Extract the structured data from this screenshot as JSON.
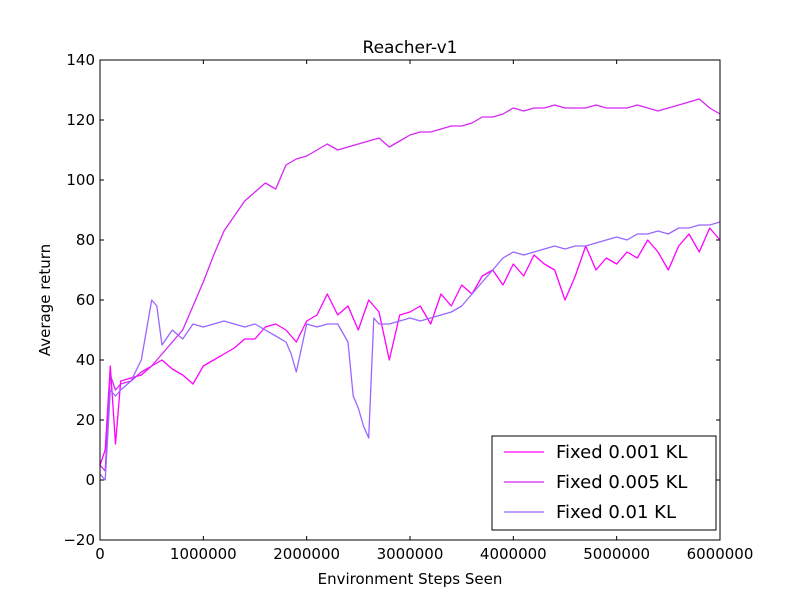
{
  "chart_data": {
    "type": "line",
    "title": "Reacher-v1",
    "xlabel": "Environment Steps Seen",
    "ylabel": "Average return",
    "xlim": [
      0,
      6000000
    ],
    "ylim": [
      -20,
      140
    ],
    "xticks": [
      0,
      1000000,
      2000000,
      3000000,
      4000000,
      5000000,
      6000000
    ],
    "xtick_labels": [
      "0",
      "1000000",
      "2000000",
      "3000000",
      "4000000",
      "5000000",
      "6000000"
    ],
    "yticks": [
      -20,
      0,
      20,
      40,
      60,
      80,
      100,
      120,
      140
    ],
    "ytick_labels": [
      "−20",
      "0",
      "20",
      "40",
      "60",
      "80",
      "100",
      "120",
      "140"
    ],
    "grid": false,
    "legend_position": "bottom-right",
    "series": [
      {
        "name": "Fixed 0.001 KL",
        "color": "#ff00ff",
        "x": [
          0,
          50000,
          100000,
          150000,
          200000,
          300000,
          400000,
          500000,
          600000,
          700000,
          800000,
          900000,
          1000000,
          1100000,
          1200000,
          1300000,
          1400000,
          1500000,
          1600000,
          1700000,
          1800000,
          1900000,
          2000000,
          2100000,
          2200000,
          2300000,
          2400000,
          2500000,
          2600000,
          2700000,
          2800000,
          2900000,
          3000000,
          3100000,
          3200000,
          3300000,
          3400000,
          3500000,
          3600000,
          3700000,
          3800000,
          3900000,
          4000000,
          4100000,
          4200000,
          4300000,
          4400000,
          4500000,
          4600000,
          4700000,
          4800000,
          4900000,
          5000000,
          5100000,
          5200000,
          5300000,
          5400000,
          5500000,
          5600000,
          5700000,
          5800000,
          5900000,
          6000000
        ],
        "values": [
          5,
          10,
          38,
          12,
          33,
          34,
          35,
          38,
          40,
          37,
          35,
          32,
          38,
          40,
          42,
          44,
          47,
          47,
          51,
          52,
          50,
          46,
          53,
          55,
          62,
          55,
          58,
          50,
          60,
          56,
          40,
          55,
          56,
          58,
          52,
          62,
          58,
          65,
          62,
          68,
          70,
          65,
          72,
          68,
          75,
          72,
          70,
          60,
          68,
          78,
          70,
          74,
          72,
          76,
          74,
          80,
          76,
          70,
          78,
          82,
          76,
          84,
          80
        ]
      },
      {
        "name": "Fixed 0.005 KL",
        "color": "#d726f5",
        "x": [
          0,
          50000,
          100000,
          150000,
          200000,
          300000,
          400000,
          500000,
          600000,
          700000,
          800000,
          900000,
          1000000,
          1100000,
          1200000,
          1300000,
          1400000,
          1500000,
          1600000,
          1700000,
          1800000,
          1900000,
          2000000,
          2100000,
          2200000,
          2300000,
          2400000,
          2500000,
          2600000,
          2700000,
          2800000,
          2900000,
          3000000,
          3100000,
          3200000,
          3300000,
          3400000,
          3500000,
          3600000,
          3700000,
          3800000,
          3900000,
          4000000,
          4100000,
          4200000,
          4300000,
          4400000,
          4500000,
          4600000,
          4700000,
          4800000,
          4900000,
          5000000,
          5100000,
          5200000,
          5300000,
          5400000,
          5500000,
          5600000,
          5700000,
          5800000,
          5900000,
          6000000
        ],
        "values": [
          5,
          3,
          35,
          30,
          32,
          33,
          36,
          38,
          42,
          46,
          50,
          58,
          66,
          75,
          83,
          88,
          93,
          96,
          99,
          97,
          105,
          107,
          108,
          110,
          112,
          110,
          111,
          112,
          113,
          114,
          111,
          113,
          115,
          116,
          116,
          117,
          118,
          118,
          119,
          121,
          121,
          122,
          124,
          123,
          124,
          124,
          125,
          124,
          124,
          124,
          125,
          124,
          124,
          124,
          125,
          124,
          123,
          124,
          125,
          126,
          127,
          124,
          122
        ]
      },
      {
        "name": "Fixed 0.01 KL",
        "color": "#9966ff",
        "x": [
          0,
          50000,
          100000,
          150000,
          200000,
          300000,
          400000,
          450000,
          500000,
          550000,
          600000,
          700000,
          800000,
          900000,
          1000000,
          1100000,
          1200000,
          1300000,
          1400000,
          1500000,
          1600000,
          1700000,
          1800000,
          1850000,
          1900000,
          2000000,
          2100000,
          2200000,
          2300000,
          2400000,
          2450000,
          2500000,
          2550000,
          2600000,
          2650000,
          2700000,
          2800000,
          2900000,
          3000000,
          3100000,
          3200000,
          3300000,
          3400000,
          3500000,
          3600000,
          3700000,
          3800000,
          3900000,
          4000000,
          4100000,
          4200000,
          4300000,
          4400000,
          4500000,
          4600000,
          4700000,
          4800000,
          4900000,
          5000000,
          5100000,
          5200000,
          5300000,
          5400000,
          5500000,
          5600000,
          5700000,
          5800000,
          5900000,
          6000000
        ],
        "values": [
          2,
          0,
          30,
          28,
          30,
          33,
          40,
          50,
          60,
          58,
          45,
          50,
          47,
          52,
          51,
          52,
          53,
          52,
          51,
          52,
          50,
          48,
          46,
          42,
          36,
          52,
          51,
          52,
          52,
          46,
          28,
          24,
          18,
          14,
          54,
          52,
          52,
          53,
          54,
          53,
          54,
          55,
          56,
          58,
          62,
          66,
          70,
          74,
          76,
          75,
          76,
          77,
          78,
          77,
          78,
          78,
          79,
          80,
          81,
          80,
          82,
          82,
          83,
          82,
          84,
          84,
          85,
          85,
          86
        ]
      }
    ]
  }
}
